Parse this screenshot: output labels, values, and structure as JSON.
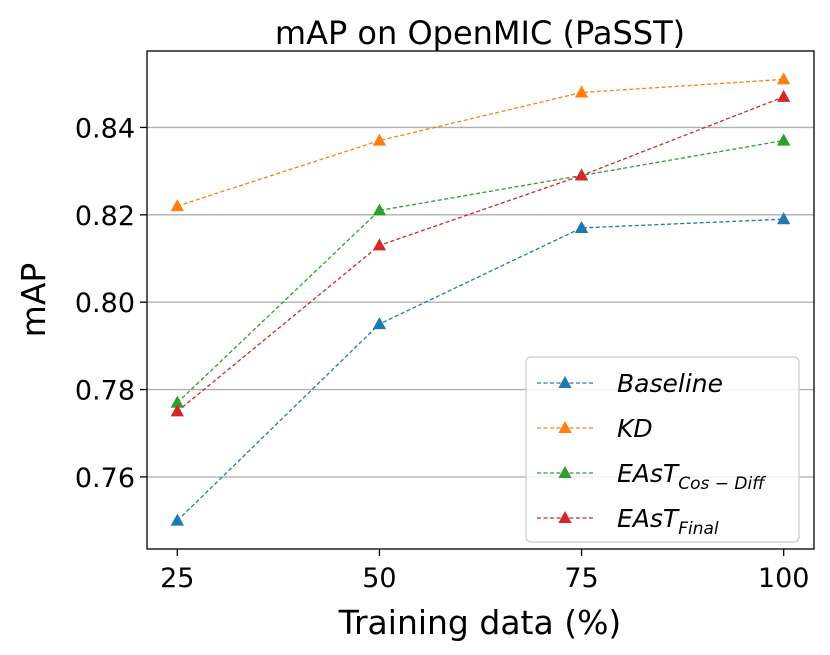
{
  "chart_data": {
    "type": "line",
    "title": "mAP on OpenMIC (PaSST)",
    "xlabel": "Training data (%)",
    "ylabel": "mAP",
    "categories": [
      "25",
      "50",
      "75",
      "100"
    ],
    "x": [
      25,
      50,
      75,
      100
    ],
    "xlim": [
      21.25,
      103.75
    ],
    "ylim": [
      0.7435,
      0.8575
    ],
    "yticks": [
      0.76,
      0.78,
      0.8,
      0.82,
      0.84
    ],
    "ytick_labels": [
      "0.76",
      "0.78",
      "0.80",
      "0.82",
      "0.84"
    ],
    "grid": "y",
    "legend_position": "bottom-right",
    "marker": "triangle",
    "line_style": "dashed",
    "series": [
      {
        "name": "Baseline",
        "name_main": "Baseline",
        "name_sub": "",
        "color": "#1f77b4",
        "values": [
          0.75,
          0.795,
          0.817,
          0.819
        ]
      },
      {
        "name": "KD",
        "name_main": "KD",
        "name_sub": "",
        "color": "#ff7f0e",
        "values": [
          0.822,
          0.837,
          0.848,
          0.851
        ]
      },
      {
        "name": "EAsT_Cos-Diff",
        "name_main": "EAsT",
        "name_sub": "Cos − Diff",
        "color": "#2ca02c",
        "values": [
          0.777,
          0.821,
          0.829,
          0.837
        ]
      },
      {
        "name": "EAsT_Final",
        "name_main": "EAsT",
        "name_sub": "Final",
        "color": "#d62728",
        "values": [
          0.775,
          0.813,
          0.829,
          0.847
        ]
      }
    ]
  }
}
